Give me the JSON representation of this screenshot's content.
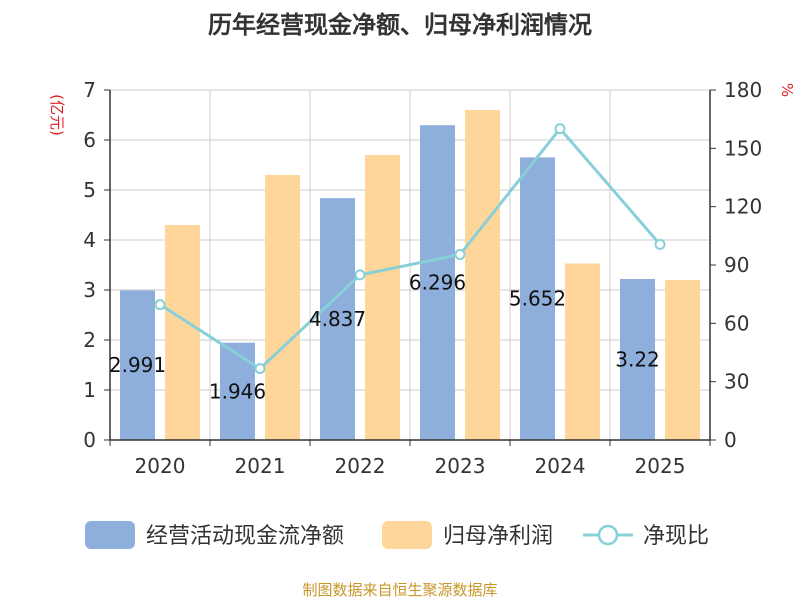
{
  "chart_data": {
    "type": "bar",
    "title": "历年经营现金净额、归母净利润情况",
    "categories": [
      "2020",
      "2021",
      "2022",
      "2023",
      "2024",
      "2025"
    ],
    "series": [
      {
        "name": "经营活动现金流净额",
        "kind": "bar",
        "axis": "left",
        "values": [
          2.991,
          1.946,
          4.837,
          6.296,
          5.652,
          3.22
        ],
        "labels": [
          "2.991",
          "1.946",
          "4.837",
          "6.296",
          "5.652",
          "3.22"
        ]
      },
      {
        "name": "归母净利润",
        "kind": "bar",
        "axis": "left",
        "values": [
          4.3,
          5.3,
          5.7,
          6.6,
          3.53,
          3.2
        ]
      },
      {
        "name": "净现比",
        "kind": "line",
        "axis": "right",
        "values": [
          69.6,
          36.7,
          84.9,
          95.4,
          160.1,
          100.6
        ]
      }
    ],
    "ylabel_left": "(亿元)",
    "ylabel_right": "%",
    "ylim_left": [
      0,
      7
    ],
    "ylim_right": [
      0,
      180
    ],
    "yticks_left": [
      "0",
      "1",
      "2",
      "3",
      "4",
      "5",
      "6",
      "7"
    ],
    "yticks_right": [
      "0",
      "30",
      "60",
      "90",
      "120",
      "150",
      "180"
    ],
    "grid": true,
    "legend_position": "bottom",
    "source": "制图数据来自恒生聚源数据库"
  },
  "colors": {
    "bar1": "#8eaedb",
    "bar2": "#ffd699",
    "line": "#88d0d8",
    "unit": "#e02020",
    "source": "#c8962a"
  }
}
